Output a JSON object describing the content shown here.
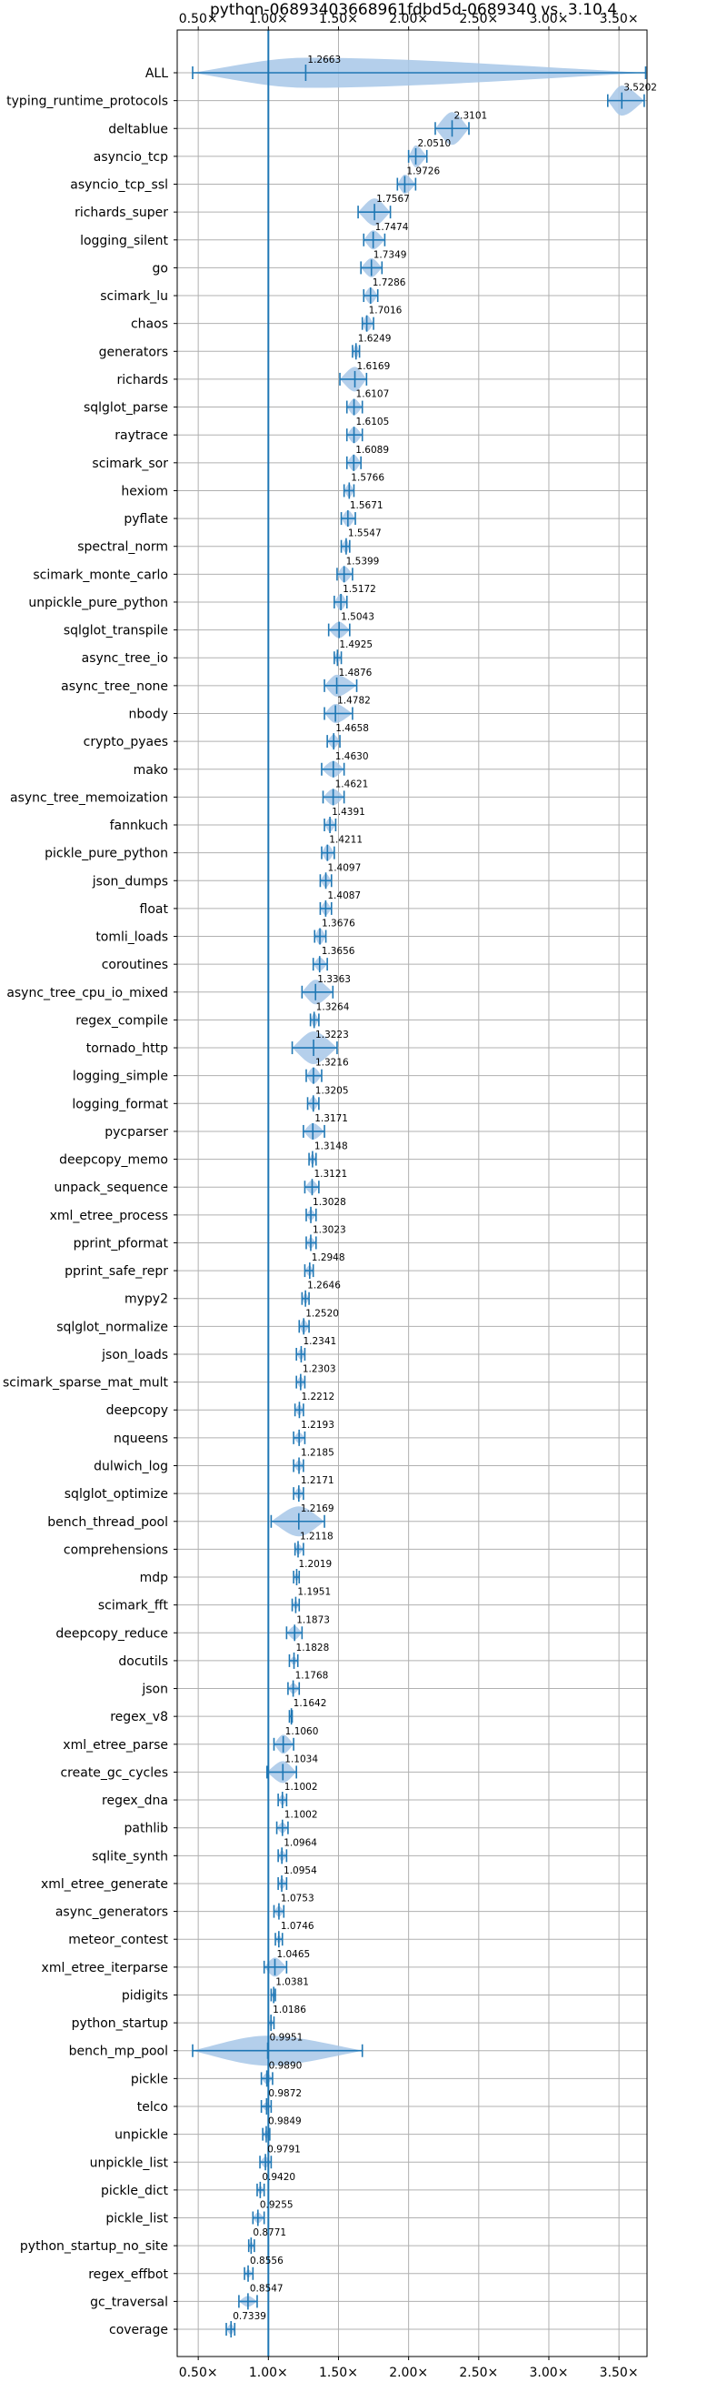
{
  "chart_data": {
    "type": "violin",
    "title": "python-06893403668961fdbd5d-0689340 vs. 3.10.4",
    "xlabel": "",
    "ylabel": "",
    "xlim": [
      0.35,
      3.7
    ],
    "xticks": [
      0.5,
      1.0,
      1.5,
      2.0,
      2.5,
      3.0,
      3.5
    ],
    "xtick_labels": [
      "0.50×",
      "1.00×",
      "1.50×",
      "2.00×",
      "2.50×",
      "3.00×",
      "3.50×"
    ],
    "reference_line": 1.0,
    "grid": true,
    "colors": {
      "violin": "#a7c7e7",
      "line": "#1f77b4"
    },
    "categories": [
      "ALL",
      "typing_runtime_protocols",
      "deltablue",
      "asyncio_tcp",
      "asyncio_tcp_ssl",
      "richards_super",
      "logging_silent",
      "go",
      "scimark_lu",
      "chaos",
      "generators",
      "richards",
      "sqlglot_parse",
      "raytrace",
      "scimark_sor",
      "hexiom",
      "pyflate",
      "spectral_norm",
      "scimark_monte_carlo",
      "unpickle_pure_python",
      "sqlglot_transpile",
      "async_tree_io",
      "async_tree_none",
      "nbody",
      "crypto_pyaes",
      "mako",
      "async_tree_memoization",
      "fannkuch",
      "pickle_pure_python",
      "json_dumps",
      "float",
      "tomli_loads",
      "coroutines",
      "async_tree_cpu_io_mixed",
      "regex_compile",
      "tornado_http",
      "logging_simple",
      "logging_format",
      "pycparser",
      "deepcopy_memo",
      "unpack_sequence",
      "xml_etree_process",
      "pprint_pformat",
      "pprint_safe_repr",
      "mypy2",
      "sqlglot_normalize",
      "json_loads",
      "scimark_sparse_mat_mult",
      "deepcopy",
      "nqueens",
      "dulwich_log",
      "sqlglot_optimize",
      "bench_thread_pool",
      "comprehensions",
      "mdp",
      "scimark_fft",
      "deepcopy_reduce",
      "docutils",
      "json",
      "regex_v8",
      "xml_etree_parse",
      "create_gc_cycles",
      "regex_dna",
      "pathlib",
      "sqlite_synth",
      "xml_etree_generate",
      "async_generators",
      "meteor_contest",
      "xml_etree_iterparse",
      "pidigits",
      "python_startup",
      "bench_mp_pool",
      "pickle",
      "telco",
      "unpickle",
      "unpickle_list",
      "pickle_dict",
      "pickle_list",
      "python_startup_no_site",
      "regex_effbot",
      "gc_traversal",
      "coverage"
    ],
    "values": [
      1.2663,
      3.5202,
      2.3101,
      2.051,
      1.9726,
      1.7567,
      1.7474,
      1.7349,
      1.7286,
      1.7016,
      1.6249,
      1.6169,
      1.6107,
      1.6105,
      1.6089,
      1.5766,
      1.5671,
      1.5547,
      1.5399,
      1.5172,
      1.5043,
      1.4925,
      1.4876,
      1.4782,
      1.4658,
      1.463,
      1.4621,
      1.4391,
      1.4211,
      1.4097,
      1.4087,
      1.3676,
      1.3656,
      1.3363,
      1.3264,
      1.3223,
      1.3216,
      1.3205,
      1.3171,
      1.3148,
      1.3121,
      1.3028,
      1.3023,
      1.2948,
      1.2646,
      1.252,
      1.2341,
      1.2303,
      1.2212,
      1.2193,
      1.2185,
      1.2171,
      1.2169,
      1.2118,
      1.2019,
      1.1951,
      1.1873,
      1.1828,
      1.1768,
      1.1642,
      1.106,
      1.1034,
      1.1002,
      1.1002,
      1.0964,
      1.0954,
      1.0753,
      1.0746,
      1.0465,
      1.0381,
      1.0186,
      0.9951,
      0.989,
      0.9872,
      0.9849,
      0.9791,
      0.942,
      0.9255,
      0.8771,
      0.8556,
      0.8547,
      0.7339
    ],
    "data_labels": [
      "1.2663",
      "3.5202",
      "2.3101",
      "2.0510",
      "1.9726",
      "1.7567",
      "1.7474",
      "1.7349",
      "1.7286",
      "1.7016",
      "1.6249",
      "1.6169",
      "1.6107",
      "1.6105",
      "1.6089",
      "1.5766",
      "1.5671",
      "1.5547",
      "1.5399",
      "1.5172",
      "1.5043",
      "1.4925",
      "1.4876",
      "1.4782",
      "1.4658",
      "1.4630",
      "1.4621",
      "1.4391",
      "1.4211",
      "1.4097",
      "1.4087",
      "1.3676",
      "1.3656",
      "1.3363",
      "1.3264",
      "1.3223",
      "1.3216",
      "1.3205",
      "1.3171",
      "1.3148",
      "1.3121",
      "1.3028",
      "1.3023",
      "1.2948",
      "1.2646",
      "1.2520",
      "1.2341",
      "1.2303",
      "1.2212",
      "1.2193",
      "1.2185",
      "1.2171",
      "1.2169",
      "1.2118",
      "1.2019",
      "1.1951",
      "1.1873",
      "1.1828",
      "1.1768",
      "1.1642",
      "1.1060",
      "1.1034",
      "1.1002",
      "1.1002",
      "1.0964",
      "1.0954",
      "1.0753",
      "1.0746",
      "1.0465",
      "1.0381",
      "1.0186",
      "0.9951",
      "0.9890",
      "0.9872",
      "0.9849",
      "0.9791",
      "0.9420",
      "0.9255",
      "0.8771",
      "0.8556",
      "0.8547",
      "0.7339"
    ],
    "ranges": [
      [
        0.46,
        3.69
      ],
      [
        3.42,
        3.68
      ],
      [
        2.19,
        2.43
      ],
      [
        2.0,
        2.13
      ],
      [
        1.92,
        2.05
      ],
      [
        1.64,
        1.87
      ],
      [
        1.68,
        1.83
      ],
      [
        1.66,
        1.81
      ],
      [
        1.68,
        1.78
      ],
      [
        1.67,
        1.75
      ],
      [
        1.6,
        1.65
      ],
      [
        1.51,
        1.7
      ],
      [
        1.56,
        1.67
      ],
      [
        1.56,
        1.67
      ],
      [
        1.56,
        1.66
      ],
      [
        1.54,
        1.61
      ],
      [
        1.52,
        1.62
      ],
      [
        1.52,
        1.58
      ],
      [
        1.49,
        1.6
      ],
      [
        1.47,
        1.56
      ],
      [
        1.43,
        1.58
      ],
      [
        1.47,
        1.52
      ],
      [
        1.4,
        1.63
      ],
      [
        1.4,
        1.6
      ],
      [
        1.42,
        1.51
      ],
      [
        1.38,
        1.54
      ],
      [
        1.39,
        1.54
      ],
      [
        1.4,
        1.48
      ],
      [
        1.38,
        1.47
      ],
      [
        1.37,
        1.45
      ],
      [
        1.37,
        1.45
      ],
      [
        1.33,
        1.41
      ],
      [
        1.32,
        1.42
      ],
      [
        1.24,
        1.46
      ],
      [
        1.3,
        1.36
      ],
      [
        1.17,
        1.49
      ],
      [
        1.27,
        1.38
      ],
      [
        1.28,
        1.36
      ],
      [
        1.25,
        1.4
      ],
      [
        1.29,
        1.34
      ],
      [
        1.26,
        1.36
      ],
      [
        1.27,
        1.34
      ],
      [
        1.27,
        1.34
      ],
      [
        1.26,
        1.32
      ],
      [
        1.24,
        1.29
      ],
      [
        1.22,
        1.29
      ],
      [
        1.2,
        1.26
      ],
      [
        1.2,
        1.26
      ],
      [
        1.19,
        1.25
      ],
      [
        1.18,
        1.26
      ],
      [
        1.18,
        1.25
      ],
      [
        1.18,
        1.25
      ],
      [
        1.02,
        1.4
      ],
      [
        1.19,
        1.25
      ],
      [
        1.18,
        1.22
      ],
      [
        1.17,
        1.22
      ],
      [
        1.13,
        1.24
      ],
      [
        1.15,
        1.21
      ],
      [
        1.14,
        1.22
      ],
      [
        1.15,
        1.17
      ],
      [
        1.04,
        1.18
      ],
      [
        0.99,
        1.2
      ],
      [
        1.07,
        1.13
      ],
      [
        1.06,
        1.14
      ],
      [
        1.07,
        1.13
      ],
      [
        1.07,
        1.13
      ],
      [
        1.04,
        1.11
      ],
      [
        1.05,
        1.1
      ],
      [
        0.97,
        1.13
      ],
      [
        1.02,
        1.05
      ],
      [
        1.0,
        1.04
      ],
      [
        0.46,
        1.67
      ],
      [
        0.95,
        1.03
      ],
      [
        0.95,
        1.02
      ],
      [
        0.96,
        1.01
      ],
      [
        0.94,
        1.02
      ],
      [
        0.92,
        0.97
      ],
      [
        0.89,
        0.97
      ],
      [
        0.86,
        0.9
      ],
      [
        0.83,
        0.89
      ],
      [
        0.79,
        0.92
      ],
      [
        0.7,
        0.76
      ]
    ],
    "violin_widths": [
      0.55,
      0.55,
      0.6,
      0.4,
      0.35,
      0.5,
      0.35,
      0.35,
      0.3,
      0.3,
      0.25,
      0.45,
      0.3,
      0.3,
      0.3,
      0.25,
      0.3,
      0.25,
      0.3,
      0.3,
      0.3,
      0.2,
      0.4,
      0.35,
      0.25,
      0.3,
      0.3,
      0.25,
      0.3,
      0.25,
      0.25,
      0.3,
      0.25,
      0.45,
      0.25,
      0.6,
      0.3,
      0.25,
      0.3,
      0.2,
      0.25,
      0.2,
      0.2,
      0.2,
      0.2,
      0.25,
      0.2,
      0.2,
      0.2,
      0.2,
      0.2,
      0.2,
      0.55,
      0.2,
      0.15,
      0.15,
      0.25,
      0.15,
      0.2,
      0.1,
      0.35,
      0.4,
      0.2,
      0.2,
      0.2,
      0.2,
      0.2,
      0.15,
      0.35,
      0.1,
      0.1,
      0.55,
      0.2,
      0.15,
      0.15,
      0.2,
      0.15,
      0.2,
      0.15,
      0.15,
      0.2,
      0.2
    ]
  }
}
